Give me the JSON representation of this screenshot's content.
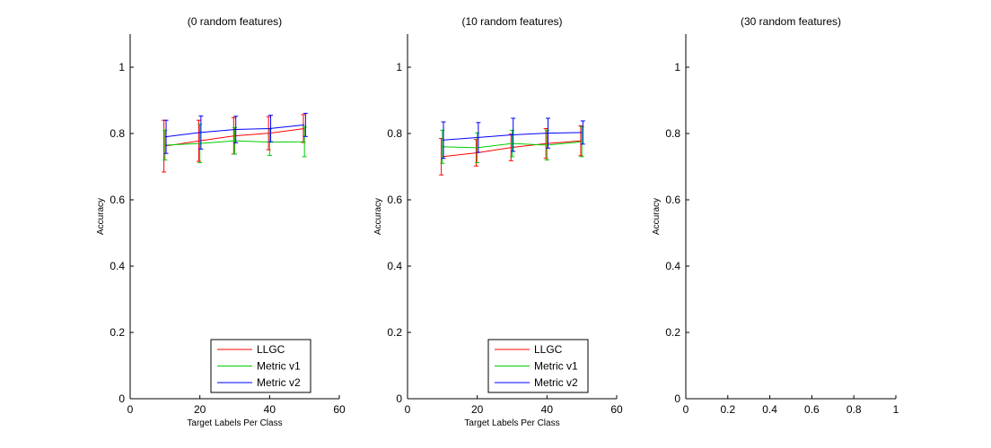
{
  "chart_data": [
    {
      "type": "line",
      "title": "(0 random features)",
      "xlabel": "Target Labels Per Class",
      "ylabel": "Accuracy",
      "xlim": [
        0,
        60
      ],
      "ylim": [
        0,
        1.1
      ],
      "xticks": [
        0,
        20,
        40,
        60
      ],
      "xtick_labels": [
        "0",
        "20",
        "40",
        "60"
      ],
      "yticks": [
        0,
        0.2,
        0.4,
        0.6,
        0.8,
        1
      ],
      "ytick_labels": [
        "0",
        "0.2",
        "0.4",
        "0.6",
        "0.8",
        "1"
      ],
      "grid": false,
      "legend": "bottom-right",
      "x": [
        10,
        20,
        30,
        40,
        50
      ],
      "series": [
        {
          "name": "LLGC",
          "color": "#ff0000",
          "values": [
            0.762,
            0.778,
            0.793,
            0.801,
            0.815
          ],
          "err": [
            0.078,
            0.062,
            0.055,
            0.05,
            0.042
          ]
        },
        {
          "name": "Metric v1",
          "color": "#00cc00",
          "values": [
            0.765,
            0.77,
            0.778,
            0.774,
            0.775
          ],
          "err": [
            0.045,
            0.058,
            0.04,
            0.04,
            0.045
          ]
        },
        {
          "name": "Metric v2",
          "color": "#0000ff",
          "values": [
            0.79,
            0.803,
            0.812,
            0.815,
            0.826
          ],
          "err": [
            0.05,
            0.05,
            0.04,
            0.04,
            0.035
          ]
        }
      ]
    },
    {
      "type": "line",
      "title": "(10 random features)",
      "xlabel": "Target Labels Per Class",
      "ylabel": "Accuracy",
      "xlim": [
        0,
        60
      ],
      "ylim": [
        0,
        1.1
      ],
      "xticks": [
        0,
        20,
        40,
        60
      ],
      "xtick_labels": [
        "0",
        "20",
        "40",
        "60"
      ],
      "yticks": [
        0,
        0.2,
        0.4,
        0.6,
        0.8,
        1
      ],
      "ytick_labels": [
        "0",
        "0.2",
        "0.4",
        "0.6",
        "0.8",
        "1"
      ],
      "grid": false,
      "legend": "bottom-right",
      "x": [
        10,
        20,
        30,
        40,
        50
      ],
      "series": [
        {
          "name": "LLGC",
          "color": "#ff0000",
          "values": [
            0.73,
            0.742,
            0.758,
            0.77,
            0.778
          ],
          "err": [
            0.055,
            0.04,
            0.04,
            0.045,
            0.045
          ]
        },
        {
          "name": "Metric v1",
          "color": "#00cc00",
          "values": [
            0.76,
            0.757,
            0.77,
            0.765,
            0.775
          ],
          "err": [
            0.05,
            0.045,
            0.04,
            0.045,
            0.045
          ]
        },
        {
          "name": "Metric v2",
          "color": "#0000ff",
          "values": [
            0.78,
            0.788,
            0.796,
            0.801,
            0.803
          ],
          "err": [
            0.055,
            0.045,
            0.05,
            0.045,
            0.035
          ]
        }
      ]
    },
    {
      "type": "line",
      "title": "(30 random features)",
      "xlabel": "",
      "ylabel": "Accuracy",
      "xlim": [
        0,
        1
      ],
      "ylim": [
        0,
        1.1
      ],
      "xticks": [
        0,
        0.2,
        0.4,
        0.6,
        0.8,
        1
      ],
      "xtick_labels": [
        "0",
        "0.2",
        "0.4",
        "0.6",
        "0.8",
        "1"
      ],
      "yticks": [
        0,
        0.2,
        0.4,
        0.6,
        0.8,
        1
      ],
      "ytick_labels": [
        "0",
        "0.2",
        "0.4",
        "0.6",
        "0.8",
        "1"
      ],
      "grid": false,
      "legend": "none",
      "x": [],
      "series": []
    }
  ]
}
